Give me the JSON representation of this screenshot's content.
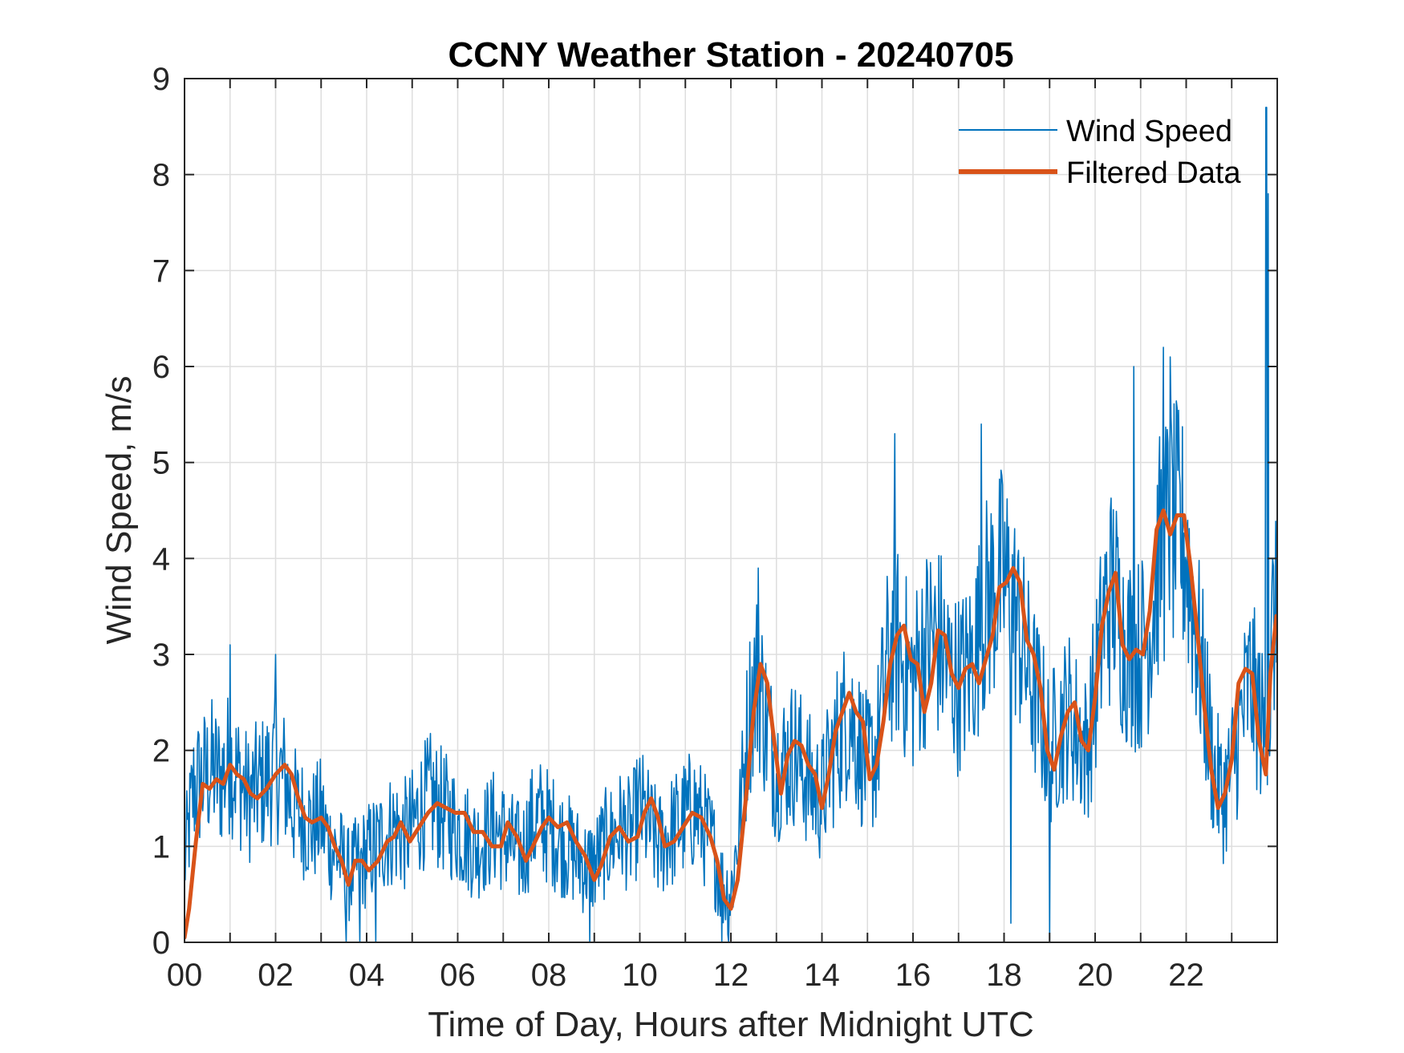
{
  "chart_data": {
    "type": "line",
    "title": "CCNY Weather Station - 20240705",
    "xlabel": "Time of Day, Hours after Midnight UTC",
    "ylabel": "Wind Speed, m/s",
    "xlim": [
      0,
      24
    ],
    "ylim": [
      0,
      9
    ],
    "grid": true,
    "legend_position": "top-right",
    "x_ticks": [
      0,
      2,
      4,
      6,
      8,
      10,
      12,
      14,
      16,
      18,
      20,
      22
    ],
    "x_tick_labels": [
      "00",
      "02",
      "04",
      "06",
      "08",
      "10",
      "12",
      "14",
      "16",
      "18",
      "20",
      "22"
    ],
    "y_ticks": [
      0,
      1,
      2,
      3,
      4,
      5,
      6,
      7,
      8,
      9
    ],
    "y_tick_labels": [
      "0",
      "1",
      "2",
      "3",
      "4",
      "5",
      "6",
      "7",
      "8",
      "9"
    ],
    "series": [
      {
        "name": "Wind Speed",
        "color": "#0072BD",
        "style": "thin-noisy",
        "sample_interval_hours": 0.0166667,
        "noise_amplitude": 0.7,
        "x": [
          0.0,
          0.2,
          0.4,
          0.6,
          0.8,
          1.0,
          1.2,
          1.4,
          1.6,
          1.8,
          2.0,
          2.2,
          2.4,
          2.6,
          2.8,
          3.0,
          3.2,
          3.4,
          3.6,
          3.8,
          4.0,
          4.2,
          4.4,
          4.6,
          4.8,
          5.0,
          5.2,
          5.4,
          5.6,
          5.8,
          6.0,
          6.2,
          6.4,
          6.6,
          6.8,
          7.0,
          7.2,
          7.4,
          7.6,
          7.8,
          8.0,
          8.2,
          8.4,
          8.6,
          8.8,
          9.0,
          9.2,
          9.4,
          9.6,
          9.8,
          10.0,
          10.2,
          10.4,
          10.6,
          10.8,
          11.0,
          11.2,
          11.4,
          11.6,
          11.8,
          12.0,
          12.2,
          12.4,
          12.6,
          12.8,
          13.0,
          13.2,
          13.4,
          13.6,
          13.8,
          14.0,
          14.2,
          14.4,
          14.6,
          14.8,
          15.0,
          15.2,
          15.4,
          15.6,
          15.8,
          16.0,
          16.2,
          16.4,
          16.6,
          16.8,
          17.0,
          17.2,
          17.4,
          17.6,
          17.8,
          18.0,
          18.2,
          18.4,
          18.6,
          18.8,
          19.0,
          19.2,
          19.4,
          19.6,
          19.8,
          20.0,
          20.2,
          20.4,
          20.6,
          20.8,
          21.0,
          21.2,
          21.4,
          21.6,
          21.8,
          22.0,
          22.2,
          22.4,
          22.6,
          22.8,
          23.0,
          23.2,
          23.4,
          23.6,
          23.8,
          23.9
        ],
        "y": [
          0.8,
          1.6,
          1.7,
          1.8,
          1.7,
          1.9,
          1.7,
          1.5,
          1.6,
          1.7,
          1.8,
          1.7,
          1.4,
          1.3,
          1.2,
          1.3,
          1.0,
          0.9,
          0.7,
          0.8,
          0.9,
          1.0,
          1.1,
          1.2,
          1.1,
          1.2,
          1.4,
          1.5,
          1.4,
          1.3,
          1.2,
          1.1,
          1.0,
          1.1,
          1.2,
          1.1,
          1.0,
          0.9,
          1.2,
          1.3,
          1.2,
          1.1,
          1.0,
          0.9,
          0.8,
          0.8,
          1.0,
          1.1,
          1.2,
          1.1,
          1.4,
          1.2,
          1.0,
          1.1,
          1.2,
          1.3,
          1.4,
          1.2,
          1.0,
          0.6,
          0.5,
          1.3,
          2.4,
          2.8,
          2.2,
          1.8,
          1.9,
          2.0,
          1.8,
          1.6,
          1.5,
          1.9,
          2.2,
          2.4,
          2.1,
          1.8,
          2.0,
          2.8,
          3.2,
          2.9,
          2.7,
          3.0,
          3.2,
          3.1,
          2.8,
          2.7,
          2.8,
          3.1,
          3.5,
          3.7,
          3.8,
          3.5,
          3.1,
          2.7,
          2.4,
          2.0,
          2.2,
          2.4,
          2.2,
          2.0,
          2.6,
          3.4,
          3.7,
          3.2,
          3.0,
          3.0,
          3.3,
          4.0,
          4.3,
          4.3,
          4.1,
          3.3,
          2.6,
          1.8,
          1.5,
          1.8,
          2.3,
          2.7,
          2.4,
          1.9,
          3.3
        ],
        "spikes": [
          [
            21.5,
            6.2
          ],
          [
            21.65,
            6.1
          ],
          [
            20.85,
            6.0
          ],
          [
            23.76,
            8.7
          ],
          [
            23.8,
            7.8
          ],
          [
            17.5,
            5.4
          ],
          [
            15.6,
            5.3
          ],
          [
            12.6,
            3.9
          ],
          [
            1.0,
            3.1
          ],
          [
            2.0,
            3.0
          ]
        ],
        "dips": [
          [
            3.55,
            0.0
          ],
          [
            3.85,
            0.0
          ],
          [
            4.2,
            0.0
          ],
          [
            8.9,
            0.0
          ],
          [
            11.8,
            0.0
          ],
          [
            11.95,
            0.0
          ],
          [
            18.15,
            0.2
          ],
          [
            19.0,
            0.0
          ]
        ]
      },
      {
        "name": "Filtered Data",
        "color": "#D95319",
        "style": "thick-smooth",
        "x": [
          0.0,
          0.1,
          0.25,
          0.4,
          0.55,
          0.7,
          0.85,
          1.0,
          1.15,
          1.3,
          1.45,
          1.6,
          1.8,
          2.0,
          2.2,
          2.35,
          2.5,
          2.65,
          2.8,
          3.0,
          3.15,
          3.3,
          3.45,
          3.6,
          3.75,
          3.9,
          4.05,
          4.25,
          4.45,
          4.6,
          4.75,
          4.95,
          5.15,
          5.35,
          5.55,
          5.75,
          5.95,
          6.15,
          6.35,
          6.55,
          6.75,
          6.95,
          7.1,
          7.3,
          7.5,
          7.7,
          7.85,
          8.0,
          8.2,
          8.4,
          8.6,
          8.8,
          9.0,
          9.15,
          9.35,
          9.55,
          9.75,
          9.95,
          10.1,
          10.25,
          10.4,
          10.55,
          10.75,
          10.95,
          11.15,
          11.35,
          11.55,
          11.7,
          11.85,
          12.0,
          12.15,
          12.35,
          12.5,
          12.65,
          12.8,
          12.95,
          13.1,
          13.25,
          13.4,
          13.55,
          13.7,
          13.85,
          14.0,
          14.15,
          14.3,
          14.45,
          14.6,
          14.75,
          14.9,
          15.05,
          15.2,
          15.35,
          15.5,
          15.65,
          15.8,
          15.95,
          16.1,
          16.25,
          16.4,
          16.55,
          16.7,
          16.85,
          17.0,
          17.15,
          17.3,
          17.45,
          17.6,
          17.75,
          17.9,
          18.05,
          18.2,
          18.35,
          18.5,
          18.65,
          18.8,
          18.95,
          19.1,
          19.25,
          19.4,
          19.55,
          19.7,
          19.85,
          20.0,
          20.15,
          20.3,
          20.45,
          20.6,
          20.75,
          20.9,
          21.05,
          21.2,
          21.35,
          21.5,
          21.65,
          21.8,
          21.95,
          22.1,
          22.25,
          22.4,
          22.55,
          22.7,
          22.85,
          23.0,
          23.15,
          23.3,
          23.45,
          23.6,
          23.75,
          23.85,
          23.98
        ],
        "y": [
          0.05,
          0.35,
          1.05,
          1.65,
          1.6,
          1.7,
          1.65,
          1.85,
          1.75,
          1.7,
          1.55,
          1.5,
          1.6,
          1.75,
          1.85,
          1.75,
          1.5,
          1.3,
          1.25,
          1.3,
          1.2,
          1.0,
          0.85,
          0.6,
          0.85,
          0.85,
          0.75,
          0.85,
          1.05,
          1.1,
          1.25,
          1.05,
          1.2,
          1.35,
          1.45,
          1.4,
          1.35,
          1.35,
          1.15,
          1.15,
          1.0,
          1.0,
          1.25,
          1.1,
          0.85,
          1.05,
          1.2,
          1.3,
          1.2,
          1.25,
          1.05,
          0.9,
          0.65,
          0.8,
          1.1,
          1.2,
          1.05,
          1.1,
          1.35,
          1.5,
          1.3,
          1.0,
          1.05,
          1.2,
          1.35,
          1.3,
          1.1,
          0.85,
          0.45,
          0.35,
          0.65,
          1.6,
          2.4,
          2.9,
          2.7,
          2.1,
          1.55,
          1.95,
          2.1,
          2.05,
          1.85,
          1.75,
          1.4,
          1.75,
          2.2,
          2.4,
          2.6,
          2.4,
          2.3,
          1.7,
          1.85,
          2.3,
          2.9,
          3.2,
          3.3,
          2.95,
          2.9,
          2.4,
          2.7,
          3.25,
          3.2,
          2.8,
          2.65,
          2.85,
          2.9,
          2.7,
          2.95,
          3.2,
          3.7,
          3.75,
          3.9,
          3.75,
          3.15,
          3.0,
          2.65,
          2.0,
          1.8,
          2.15,
          2.4,
          2.5,
          2.1,
          2.0,
          2.55,
          3.3,
          3.65,
          3.85,
          3.1,
          2.95,
          3.05,
          3.0,
          3.45,
          4.3,
          4.5,
          4.25,
          4.45,
          4.45,
          3.9,
          3.2,
          2.45,
          1.8,
          1.4,
          1.55,
          1.9,
          2.7,
          2.85,
          2.8,
          2.1,
          1.75,
          2.8,
          3.4
        ]
      }
    ]
  }
}
